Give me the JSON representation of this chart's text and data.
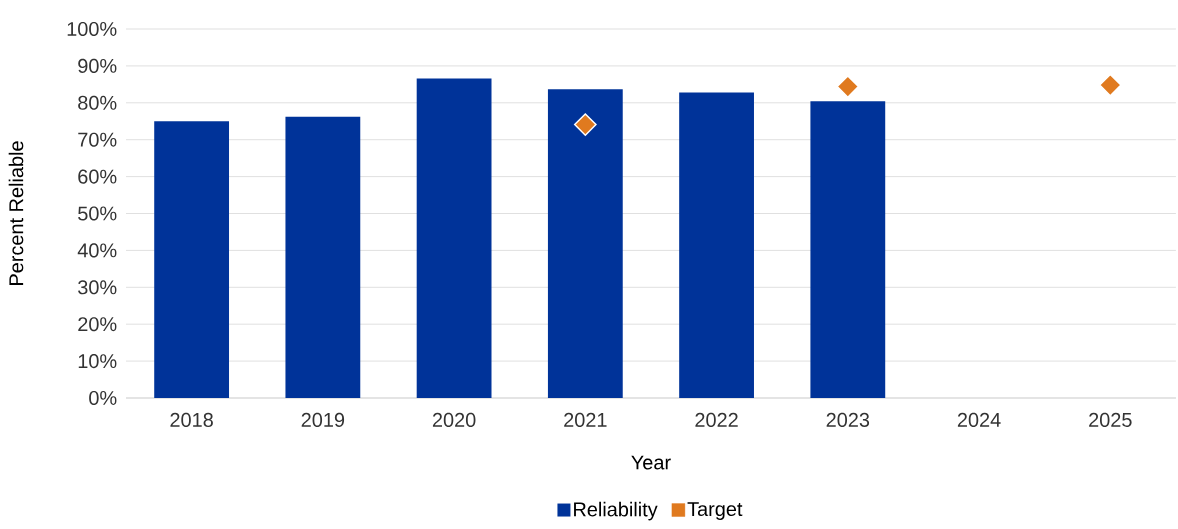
{
  "chart_data": {
    "type": "bar",
    "categories": [
      "2018",
      "2019",
      "2020",
      "2021",
      "2022",
      "2023",
      "2024",
      "2025"
    ],
    "xlabel": "Year",
    "ylabel": "Percent Reliable",
    "ylim": [
      0,
      100
    ],
    "yticks": [
      {
        "value": 0,
        "label": "0%"
      },
      {
        "value": 10,
        "label": "10%"
      },
      {
        "value": 20,
        "label": "20%"
      },
      {
        "value": 30,
        "label": "30%"
      },
      {
        "value": 40,
        "label": "40%"
      },
      {
        "value": 50,
        "label": "50%"
      },
      {
        "value": 60,
        "label": "60%"
      },
      {
        "value": 70,
        "label": "70%"
      },
      {
        "value": 80,
        "label": "80%"
      },
      {
        "value": 90,
        "label": "90%"
      },
      {
        "value": 100,
        "label": "100%"
      }
    ],
    "grid": "y",
    "legend": "bottom",
    "series": [
      {
        "name": "Reliability",
        "color": "#003399",
        "values": [
          75,
          76.2,
          86.6,
          83.7,
          82.8,
          80.4,
          null,
          null
        ]
      },
      {
        "name": "Target",
        "type": "scatter",
        "marker": "diamond",
        "color": "#e07a1f",
        "values": [
          null,
          null,
          null,
          74.1,
          null,
          84.4,
          null,
          84.8
        ]
      }
    ]
  }
}
